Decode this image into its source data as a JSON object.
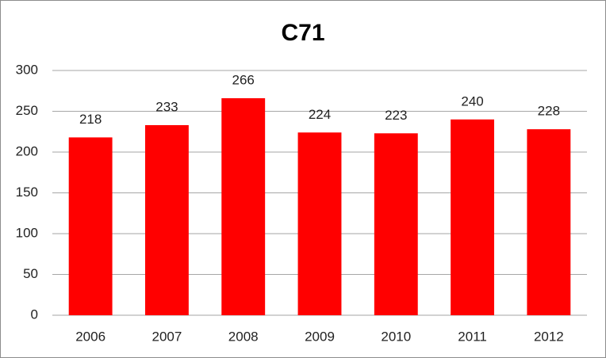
{
  "chart_data": {
    "type": "bar",
    "title": "C71",
    "categories": [
      "2006",
      "2007",
      "2008",
      "2009",
      "2010",
      "2011",
      "2012"
    ],
    "values": [
      218,
      233,
      266,
      224,
      223,
      240,
      228
    ],
    "color": "#ff0000",
    "ylim": [
      0,
      300
    ],
    "yticks": [
      0,
      50,
      100,
      150,
      200,
      250,
      300
    ],
    "grid": true
  }
}
